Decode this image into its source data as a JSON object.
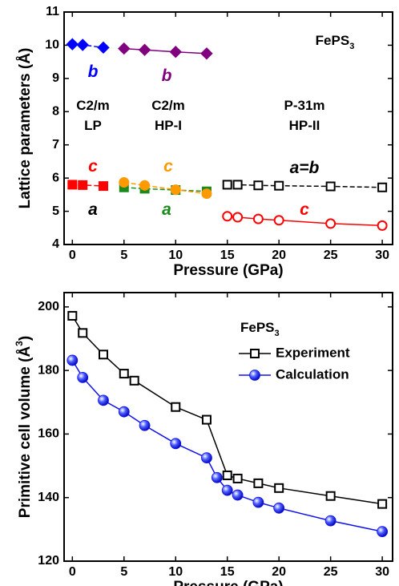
{
  "chart_data": [
    {
      "type": "line",
      "xlabel": "Pressure (GPa)",
      "ylabel": "Lattice parameters (Å)",
      "xlim": [
        -0.8,
        31
      ],
      "ylim": [
        4,
        11
      ],
      "xticks": [
        0,
        5,
        10,
        15,
        20,
        25,
        30
      ],
      "yticks": [
        4,
        5,
        6,
        7,
        8,
        9,
        10,
        11
      ],
      "annotations": [
        {
          "text": "FePS",
          "sub": "3",
          "color": "#000000"
        },
        {
          "text": "b",
          "color": "#0000ff",
          "italic": true
        },
        {
          "text": "b",
          "color": "#800080",
          "italic": true
        },
        {
          "text": "C2/m",
          "color": "#000000"
        },
        {
          "text": "LP",
          "color": "#000000"
        },
        {
          "text": "C2/m",
          "color": "#000000"
        },
        {
          "text": "HP-I",
          "color": "#000000"
        },
        {
          "text": "P-31m",
          "color": "#000000"
        },
        {
          "text": "HP-II",
          "color": "#000000"
        },
        {
          "text": "c",
          "color": "#ff0000",
          "italic": true
        },
        {
          "text": "c",
          "color": "#ff9900",
          "italic": true
        },
        {
          "text": "a",
          "color": "#000000",
          "italic": true
        },
        {
          "text": "a",
          "color": "#1a8a1a",
          "italic": true
        },
        {
          "text": "a=b",
          "color": "#000000",
          "italic": true
        },
        {
          "text": "c",
          "color": "#ff0000",
          "italic": true
        }
      ],
      "series": [
        {
          "color": "#0000ff",
          "marker": "diamond",
          "filled": true,
          "dashed": true,
          "x": [
            0,
            1,
            3
          ],
          "values": [
            10.03,
            10.01,
            9.93
          ]
        },
        {
          "color": "#800080",
          "marker": "diamond",
          "filled": true,
          "dashed": false,
          "x": [
            5,
            7,
            10,
            13
          ],
          "values": [
            9.9,
            9.86,
            9.8,
            9.75
          ]
        },
        {
          "color": "#ff0000",
          "marker": "square",
          "filled": true,
          "dashed": true,
          "x": [
            0,
            1,
            3
          ],
          "values": [
            5.8,
            5.79,
            5.76
          ]
        },
        {
          "color": "#1a8a1a",
          "marker": "square",
          "filled": true,
          "dashed": true,
          "x": [
            5,
            7,
            10,
            13
          ],
          "values": [
            5.72,
            5.68,
            5.64,
            5.6
          ]
        },
        {
          "color": "#ff9900",
          "marker": "circle",
          "filled": true,
          "dashed": true,
          "x": [
            5,
            7,
            10,
            13
          ],
          "values": [
            5.87,
            5.78,
            5.65,
            5.53
          ]
        },
        {
          "color": "#000000",
          "marker": "square",
          "filled": false,
          "dashed": true,
          "x": [
            15,
            16,
            18,
            20,
            25,
            30
          ],
          "values": [
            5.8,
            5.8,
            5.78,
            5.77,
            5.75,
            5.72
          ]
        },
        {
          "color": "#ff0000",
          "marker": "circle",
          "filled": false,
          "dashed": false,
          "x": [
            15,
            16,
            18,
            20,
            25,
            30
          ],
          "values": [
            4.85,
            4.82,
            4.77,
            4.73,
            4.63,
            4.57
          ]
        }
      ]
    },
    {
      "type": "line",
      "xlabel": "Pressure (GPa)",
      "ylabel": "Primitive cell volume (Å",
      "ylabel_sup": "3",
      "ylabel_end": ")",
      "xlim": [
        -0.8,
        31
      ],
      "ylim": [
        120,
        204.5
      ],
      "xticks": [
        0,
        5,
        10,
        15,
        20,
        25,
        30
      ],
      "yticks": [
        120,
        140,
        160,
        180,
        200
      ],
      "legend": {
        "title": "FePS",
        "title_sub": "3",
        "position": "upper right"
      },
      "series": [
        {
          "name": "Experiment",
          "color": "#000000",
          "marker": "square",
          "filled": false,
          "dashed": false,
          "x": [
            0,
            1,
            3,
            5,
            6,
            10,
            13,
            15,
            16,
            18,
            20,
            25,
            30
          ],
          "values": [
            197.2,
            191.8,
            185,
            179,
            176.8,
            168.5,
            164.5,
            147,
            146,
            144.5,
            143,
            140.5,
            138
          ]
        },
        {
          "name": "Calculation",
          "color": "#1010ee",
          "marker": "ball",
          "filled": true,
          "dashed": false,
          "x": [
            0,
            1,
            3,
            5,
            7,
            10,
            13,
            14,
            15,
            16,
            18,
            20,
            25,
            30
          ],
          "values": [
            183.2,
            177.8,
            170.6,
            167,
            162.7,
            157,
            152.5,
            146.3,
            142.3,
            140.8,
            138.5,
            136.7,
            132.7,
            129.3
          ]
        }
      ]
    }
  ]
}
